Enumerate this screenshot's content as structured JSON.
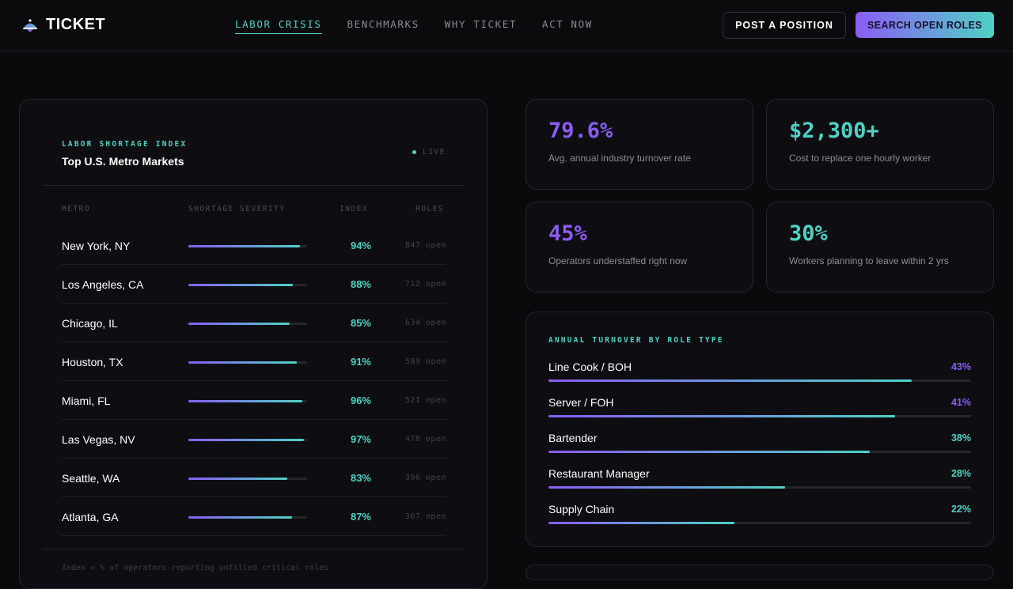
{
  "brand": {
    "name": "TICKET"
  },
  "nav": {
    "links": [
      {
        "label": "LABOR CRISIS",
        "active": true
      },
      {
        "label": "BENCHMARKS",
        "active": false
      },
      {
        "label": "WHY TICKET",
        "active": false
      },
      {
        "label": "ACT NOW",
        "active": false
      }
    ],
    "post_label": "POST A POSITION",
    "search_label": "SEARCH OPEN ROLES"
  },
  "colors": {
    "accent_teal": "#4fd1c5",
    "accent_purple": "#8b5cf6",
    "background": "#0a0a0c",
    "panel": "#0e0e12"
  },
  "shortage": {
    "eyebrow": "LABOR SHORTAGE INDEX",
    "title": "Top U.S. Metro Markets",
    "live_label": "LIVE",
    "columns": {
      "metro": "METRO",
      "severity": "SHORTAGE SEVERITY",
      "index": "INDEX",
      "roles": "ROLES"
    },
    "rows": [
      {
        "metro": "New York, NY",
        "severity": 0.94,
        "index": "94%",
        "roles": "847 open"
      },
      {
        "metro": "Los Angeles, CA",
        "severity": 0.88,
        "index": "88%",
        "roles": "712 open"
      },
      {
        "metro": "Chicago, IL",
        "severity": 0.85,
        "index": "85%",
        "roles": "634 open"
      },
      {
        "metro": "Houston, TX",
        "severity": 0.91,
        "index": "91%",
        "roles": "589 open"
      },
      {
        "metro": "Miami, FL",
        "severity": 0.96,
        "index": "96%",
        "roles": "521 open"
      },
      {
        "metro": "Las Vegas, NV",
        "severity": 0.97,
        "index": "97%",
        "roles": "478 open"
      },
      {
        "metro": "Seattle, WA",
        "severity": 0.83,
        "index": "83%",
        "roles": "396 open"
      },
      {
        "metro": "Atlanta, GA",
        "severity": 0.87,
        "index": "87%",
        "roles": "367 open"
      }
    ],
    "footnote": "Index = % of operators reporting unfilled critical roles"
  },
  "stats": [
    {
      "value": "79.6%",
      "label": "Avg. annual industry turnover rate",
      "color": "#8b5cf6"
    },
    {
      "value": "$2,300+",
      "label": "Cost to replace one hourly worker",
      "color": "#4fd1c5"
    },
    {
      "value": "45%",
      "label": "Operators understaffed right now",
      "color": "#8b5cf6"
    },
    {
      "value": "30%",
      "label": "Workers planning to leave within 2 yrs",
      "color": "#4fd1c5"
    }
  ],
  "turnover": {
    "eyebrow": "ANNUAL TURNOVER BY ROLE TYPE",
    "rows": [
      {
        "role": "Line Cook / BOH",
        "pct": "43%",
        "fill": 0.86,
        "color": "#8b5cf6"
      },
      {
        "role": "Server / FOH",
        "pct": "41%",
        "fill": 0.82,
        "color": "#8b5cf6"
      },
      {
        "role": "Bartender",
        "pct": "38%",
        "fill": 0.76,
        "color": "#4fd1c5"
      },
      {
        "role": "Restaurant Manager",
        "pct": "28%",
        "fill": 0.56,
        "color": "#4fd1c5"
      },
      {
        "role": "Supply Chain",
        "pct": "22%",
        "fill": 0.44,
        "color": "#4fd1c5"
      }
    ]
  }
}
